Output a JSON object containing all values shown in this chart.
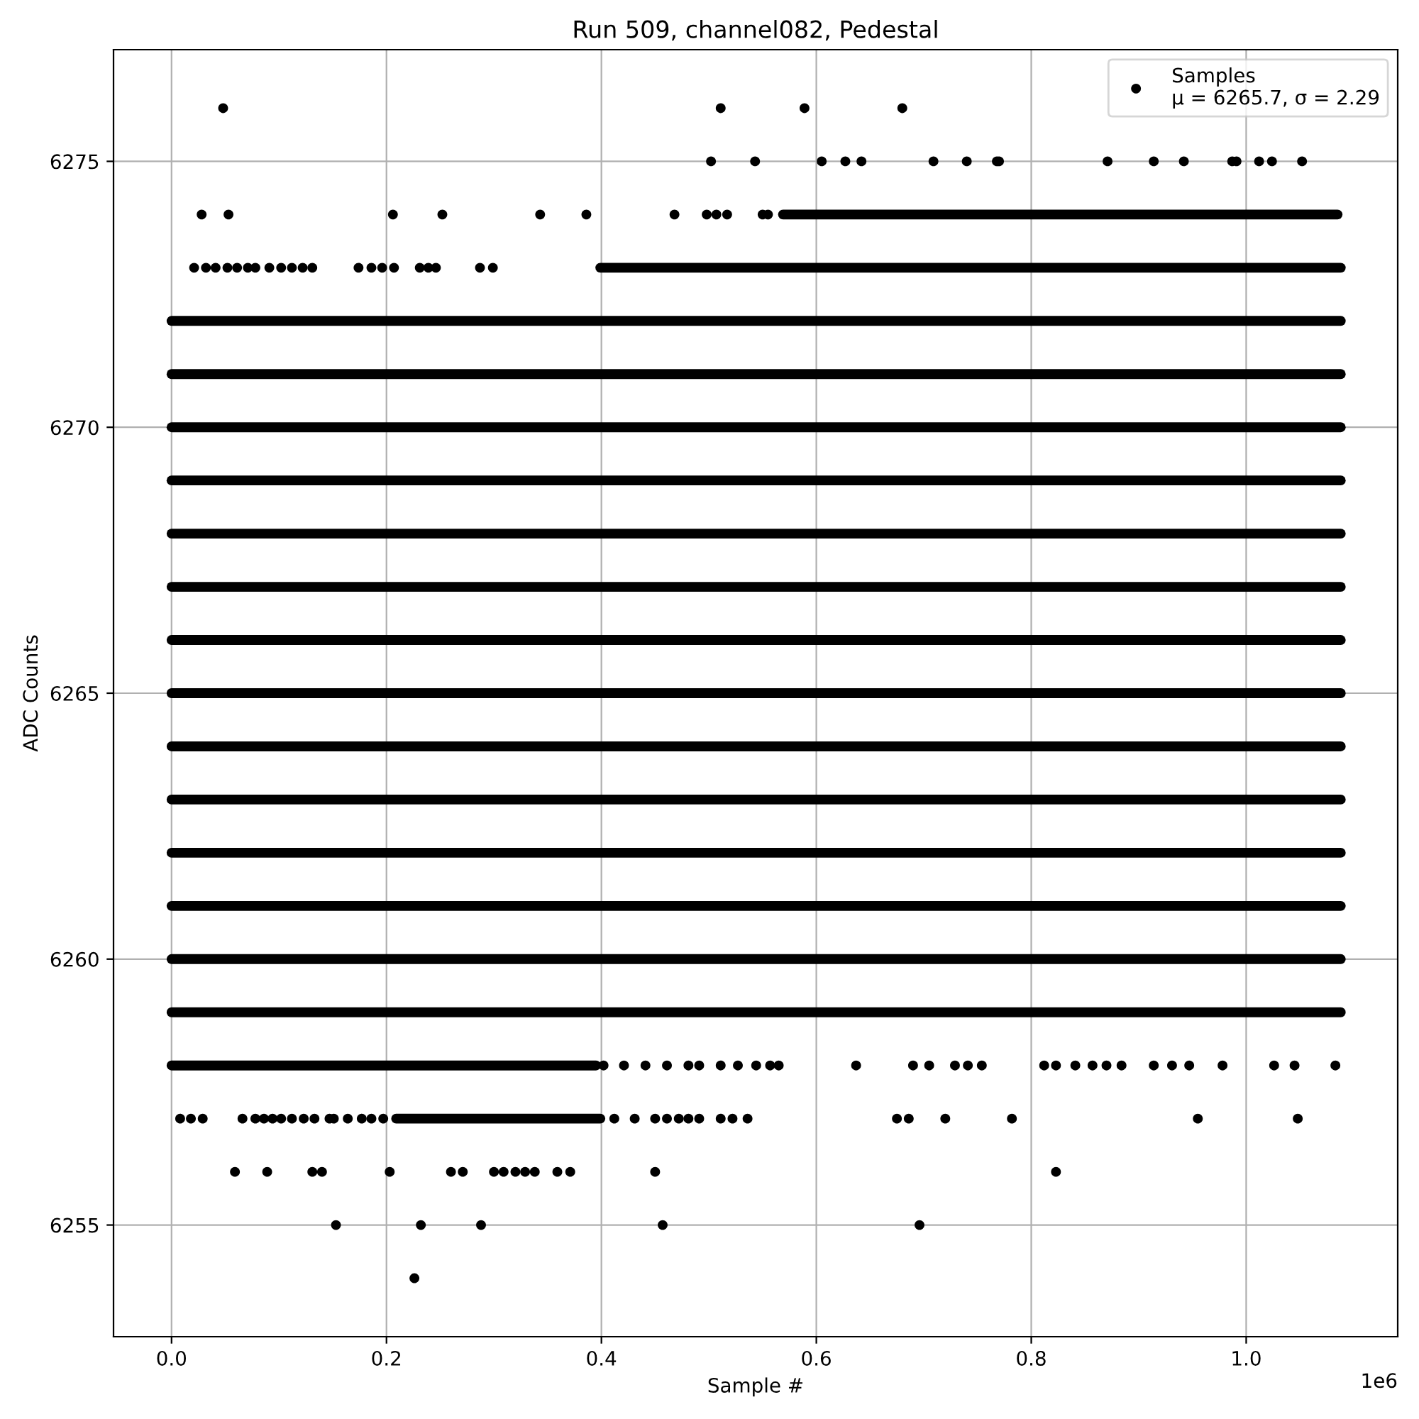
{
  "chart_data": {
    "type": "scatter",
    "title": "Run 509, channel082, Pedestal",
    "xlabel": "Sample #",
    "ylabel": "ADC Counts",
    "xlim": [
      -0.054,
      1.141
    ],
    "ylim": [
      6252.9,
      6277.1
    ],
    "xticks": [
      {
        "value": 0,
        "label": "0.0"
      },
      0.2,
      0.4,
      0.6,
      0.8,
      {
        "value": 1,
        "label": "1.0"
      }
    ],
    "yticks": [
      6255,
      6260,
      6265,
      6270,
      6275
    ],
    "grid": true,
    "legend": "top right",
    "annotations": [
      "1e6"
    ],
    "series": [
      {
        "name": "Samples\nμ = 6265.7, σ = 2.29",
        "color": "#000000",
        "marker": "circle",
        "x": [
          0.048,
          0.511,
          0.589,
          0.68,
          0.502,
          0.543,
          0.605,
          0.627,
          0.642,
          0.709,
          0.74,
          0.768,
          0.77,
          0.871,
          0.914,
          0.942,
          0.987,
          0.991,
          1.012,
          1.024,
          1.052,
          0.028,
          0.053,
          0.206,
          0.252,
          0.343,
          0.386,
          0.468,
          0.498,
          0.507,
          0.517,
          0.55,
          0.555,
          0.021,
          0.032,
          0.041,
          0.052,
          0.061,
          0.071,
          0.078,
          0.091,
          0.102,
          0.112,
          0.122,
          0.131,
          0.174,
          0.186,
          0.196,
          0.207,
          0.231,
          0.239,
          0.246,
          0.287,
          0.299,
          0.402,
          0.421,
          0.441,
          0.461,
          0.481,
          0.491,
          0.511,
          0.527,
          0.544,
          0.557,
          0.565,
          0.637,
          0.69,
          0.705,
          0.729,
          0.741,
          0.754,
          0.812,
          0.823,
          0.841,
          0.857,
          0.87,
          0.884,
          0.914,
          0.931,
          0.947,
          0.978,
          1.026,
          1.045,
          1.083,
          0.008,
          0.018,
          0.029,
          0.066,
          0.078,
          0.086,
          0.094,
          0.102,
          0.112,
          0.123,
          0.133,
          0.147,
          0.151,
          0.164,
          0.177,
          0.186,
          0.197,
          0.412,
          0.431,
          0.45,
          0.461,
          0.472,
          0.481,
          0.491,
          0.511,
          0.522,
          0.536,
          0.675,
          0.686,
          0.72,
          0.782,
          0.955,
          1.048,
          0.059,
          0.089,
          0.131,
          0.14,
          0.203,
          0.26,
          0.271,
          0.3,
          0.309,
          0.32,
          0.329,
          0.338,
          0.359,
          0.371,
          0.45,
          0.823,
          0.153,
          0.232,
          0.288,
          0.457,
          0.696,
          0.226
        ],
        "values": [
          6276,
          6276,
          6276,
          6276,
          6275,
          6275,
          6275,
          6275,
          6275,
          6275,
          6275,
          6275,
          6275,
          6275,
          6275,
          6275,
          6275,
          6275,
          6275,
          6275,
          6275,
          6274,
          6274,
          6274,
          6274,
          6274,
          6274,
          6274,
          6274,
          6274,
          6274,
          6274,
          6274,
          6273,
          6273,
          6273,
          6273,
          6273,
          6273,
          6273,
          6273,
          6273,
          6273,
          6273,
          6273,
          6273,
          6273,
          6273,
          6273,
          6273,
          6273,
          6273,
          6273,
          6273,
          6258,
          6258,
          6258,
          6258,
          6258,
          6258,
          6258,
          6258,
          6258,
          6258,
          6258,
          6258,
          6258,
          6258,
          6258,
          6258,
          6258,
          6258,
          6258,
          6258,
          6258,
          6258,
          6258,
          6258,
          6258,
          6258,
          6258,
          6258,
          6258,
          6258,
          6257,
          6257,
          6257,
          6257,
          6257,
          6257,
          6257,
          6257,
          6257,
          6257,
          6257,
          6257,
          6257,
          6257,
          6257,
          6257,
          6257,
          6257,
          6257,
          6257,
          6257,
          6257,
          6257,
          6257,
          6257,
          6257,
          6257,
          6257,
          6257,
          6257,
          6257,
          6257,
          6257,
          6256,
          6256,
          6256,
          6256,
          6256,
          6256,
          6256,
          6256,
          6256,
          6256,
          6256,
          6256,
          6256,
          6256,
          6256,
          6256,
          6255,
          6255,
          6255,
          6255,
          6255,
          6254
        ]
      },
      {
        "type": "line",
        "color": "#000000",
        "x": [
          0.569,
          1.085
        ],
        "values": [
          6274,
          6274
        ]
      },
      {
        "type": "line",
        "color": "#000000",
        "x": [
          0.399,
          1.088
        ],
        "values": [
          6273,
          6273
        ]
      },
      {
        "type": "line",
        "color": "#000000",
        "x": [
          0,
          1.088
        ],
        "values": [
          6272,
          6272
        ]
      },
      {
        "type": "line",
        "color": "#000000",
        "x": [
          0,
          1.088
        ],
        "values": [
          6271,
          6271
        ]
      },
      {
        "type": "line",
        "color": "#000000",
        "x": [
          0,
          1.088
        ],
        "values": [
          6270,
          6270
        ]
      },
      {
        "type": "line",
        "color": "#000000",
        "x": [
          0,
          1.088
        ],
        "values": [
          6269,
          6269
        ]
      },
      {
        "type": "line",
        "color": "#000000",
        "x": [
          0,
          1.088
        ],
        "values": [
          6268,
          6268
        ]
      },
      {
        "type": "line",
        "color": "#000000",
        "x": [
          0,
          1.088
        ],
        "values": [
          6267,
          6267
        ]
      },
      {
        "type": "line",
        "color": "#000000",
        "x": [
          0,
          1.088
        ],
        "values": [
          6266,
          6266
        ]
      },
      {
        "type": "line",
        "color": "#000000",
        "x": [
          0,
          1.088
        ],
        "values": [
          6265,
          6265
        ]
      },
      {
        "type": "line",
        "color": "#000000",
        "x": [
          0,
          1.088
        ],
        "values": [
          6264,
          6264
        ]
      },
      {
        "type": "line",
        "color": "#000000",
        "x": [
          0,
          1.088
        ],
        "values": [
          6263,
          6263
        ]
      },
      {
        "type": "line",
        "color": "#000000",
        "x": [
          0,
          1.088
        ],
        "values": [
          6262,
          6262
        ]
      },
      {
        "type": "line",
        "color": "#000000",
        "x": [
          0,
          1.088
        ],
        "values": [
          6261,
          6261
        ]
      },
      {
        "type": "line",
        "color": "#000000",
        "x": [
          0,
          1.088
        ],
        "values": [
          6260,
          6260
        ]
      },
      {
        "type": "line",
        "color": "#000000",
        "x": [
          0,
          1.088
        ],
        "values": [
          6259,
          6259
        ]
      },
      {
        "type": "line",
        "color": "#000000",
        "x": [
          0,
          0.395
        ],
        "values": [
          6258,
          6258
        ]
      },
      {
        "type": "line",
        "color": "#000000",
        "x": [
          0.209,
          0.399
        ],
        "values": [
          6257,
          6257
        ]
      }
    ]
  }
}
